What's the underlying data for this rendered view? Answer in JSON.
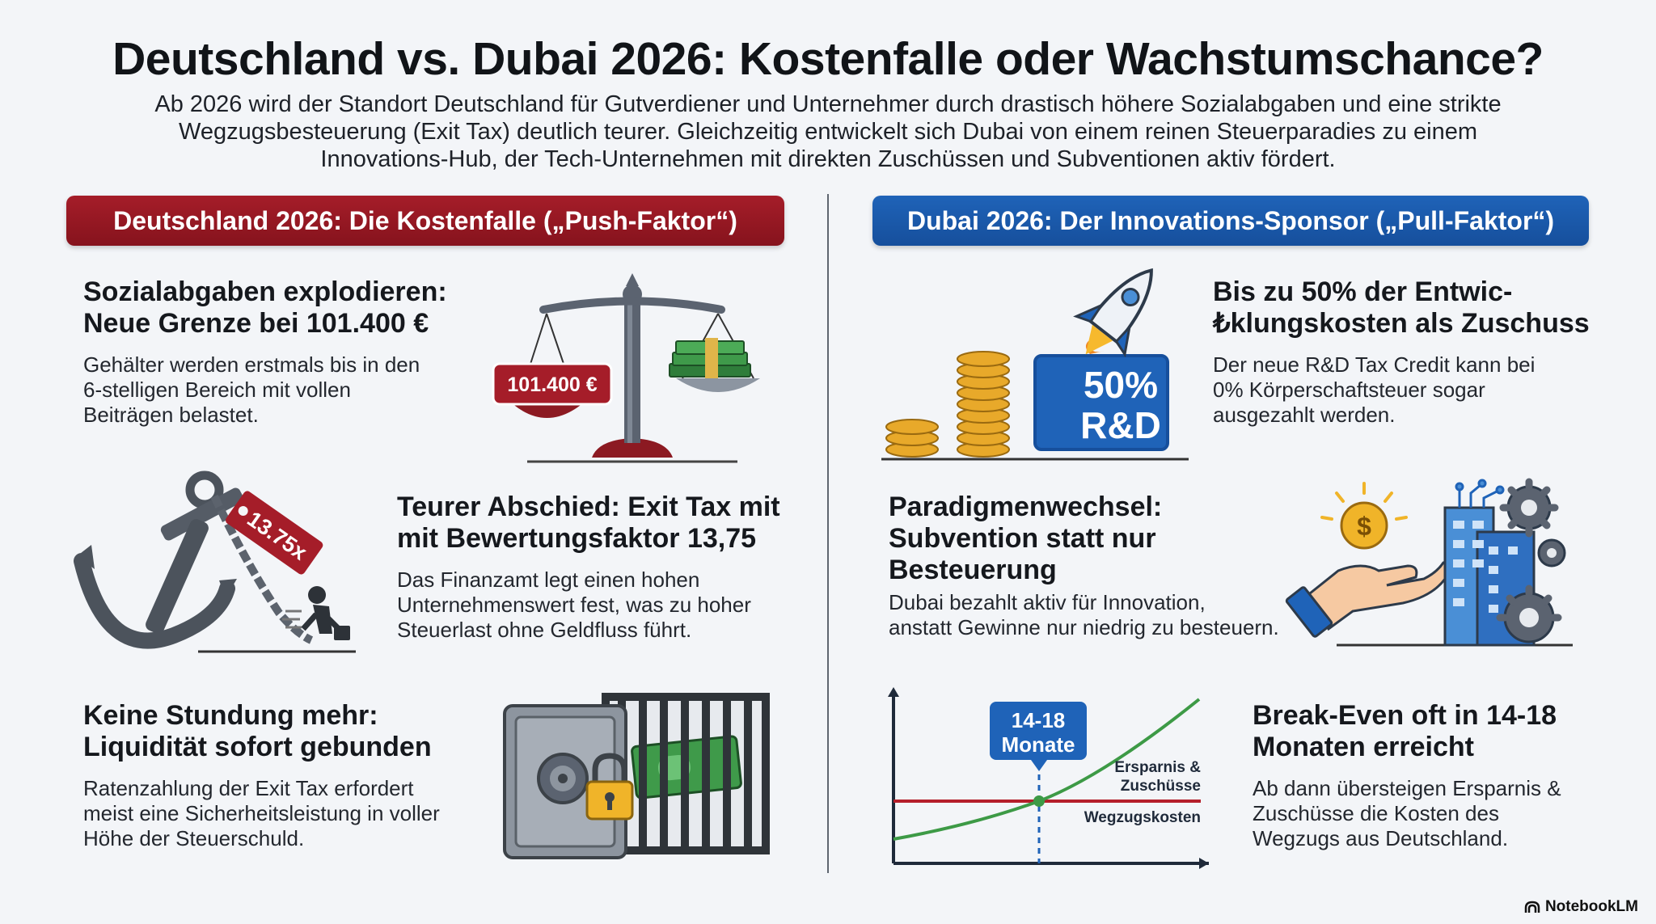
{
  "title": "Deutschland vs. Dubai 2026: Kostenfalle oder Wachstumschance?",
  "intro": [
    "Ab 2026 wird der Standort Deutschland für Gutverdiener und Unternehmer durch drastisch höhere Sozialabgaben und eine strikte",
    "Wegzugsbesteuerung (Exit Tax) deutlich teurer. Gleichzeitig entwickelt sich Dubai von einem reinen Steuerparadies zu einem",
    "Innovations-Hub, der Tech-Unternehmen mit direkten Zuschüssen und Subventionen aktiv fördert."
  ],
  "germany": {
    "banner": "Deutschland 2026: Die Kostenfalle („Push-Faktor“)",
    "accent": "#a51d29",
    "items": [
      {
        "heading": [
          "Sozialabgaben explodieren:",
          "Neue Grenze bei 101.400 €"
        ],
        "body": [
          "Gehälter werden erstmals bis in den",
          "6-stelligen Bereich mit vollen",
          "Beiträgen belastet."
        ],
        "icon": "scale-icon",
        "icon_label": "101.400 €"
      },
      {
        "heading": [
          "Teurer Abschied: Exit Tax mit",
          "mit Bewertungsfaktor 13,75"
        ],
        "body": [
          "Das Finanzamt legt einen hohen",
          "Unternehmenswert fest, was zu hoher",
          "Steuerlast ohne Geldfluss führt."
        ],
        "icon": "anchor-icon",
        "icon_label": "13.75x"
      },
      {
        "heading": [
          "Keine Stundung mehr:",
          "Liquidität sofort gebunden"
        ],
        "body": [
          "Ratenzahlung der Exit Tax erfordert",
          "meist eine Sicherheitsleistung in voller",
          "Höhe der Steuerschuld."
        ],
        "icon": "safe-icon"
      }
    ]
  },
  "dubai": {
    "banner": "Dubai 2026: Der Innovations-Sponsor („Pull-Faktor“)",
    "accent": "#1f63b8",
    "items": [
      {
        "heading": [
          "Bis zu 50% der Entwic-",
          "₺klungskosten als Zuschuss"
        ],
        "body": [
          "Der neue R&D Tax Credit kann bei",
          "0% Körperschaftsteuer sogar",
          "ausgezahlt werden."
        ],
        "icon": "rocket-icon",
        "icon_label": [
          "50%",
          "R&D"
        ]
      },
      {
        "heading": [
          "Paradigmenwechsel:",
          "Subvention statt nur",
          "Besteuerung"
        ],
        "body": [
          "Dubai bezahlt aktiv für Innovation,",
          "anstatt Gewinne nur niedrig zu besteuern."
        ],
        "icon": "hand-coin-icon"
      },
      {
        "heading": [
          "Break-Even oft in 14-18",
          "Monaten erreicht"
        ],
        "body": [
          "Ab dann übersteigen Ersparnis &",
          "Zuschüsse die Kosten des",
          "Wegzugs aus Deutschland."
        ],
        "icon": "breakeven-chart-icon",
        "chart_labels": {
          "callout": [
            "14-18",
            "Monate"
          ],
          "green": [
            "Ersparnis &",
            "Zuschüsse"
          ],
          "red": "Wegzugskosten"
        }
      }
    ]
  },
  "brand": "NotebookLM"
}
